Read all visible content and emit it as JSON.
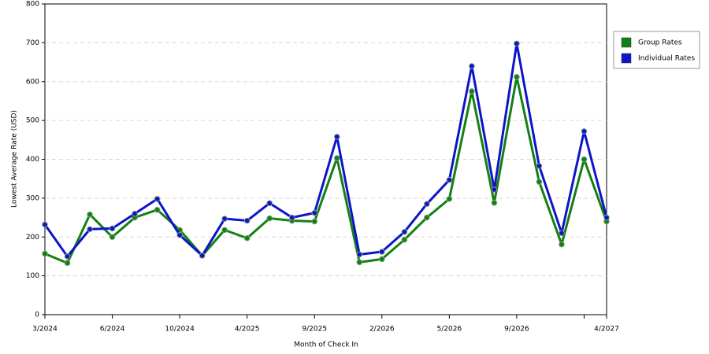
{
  "chart_data": {
    "type": "line",
    "xlabel": "Month of Check In",
    "ylabel": "Lowest Average Rate (USD)",
    "categories": [
      "3/2024",
      null,
      null,
      "6/2024",
      null,
      null,
      "10/2024",
      null,
      null,
      "4/2025",
      null,
      null,
      "9/2025",
      null,
      null,
      "2/2026",
      null,
      null,
      "5/2026",
      null,
      null,
      "9/2026",
      null,
      null,
      null,
      "4/2027"
    ],
    "series": [
      {
        "name": "Group Rates",
        "color": "#138013",
        "values": [
          157,
          133,
          258,
          200,
          250,
          270,
          218,
          152,
          218,
          197,
          248,
          242,
          240,
          403,
          135,
          143,
          193,
          250,
          298,
          575,
          288,
          612,
          342,
          181,
          400,
          240
        ]
      },
      {
        "name": "Individual Rates",
        "color": "#0f14c8",
        "values": [
          232,
          150,
          220,
          222,
          260,
          298,
          205,
          152,
          247,
          242,
          287,
          250,
          262,
          458,
          155,
          162,
          213,
          285,
          347,
          640,
          322,
          698,
          383,
          210,
          472,
          250
        ]
      }
    ],
    "ylim": [
      0,
      800
    ],
    "yticks": [
      0,
      100,
      200,
      300,
      400,
      500,
      600,
      700,
      800
    ],
    "grid": true,
    "legend": "right"
  }
}
